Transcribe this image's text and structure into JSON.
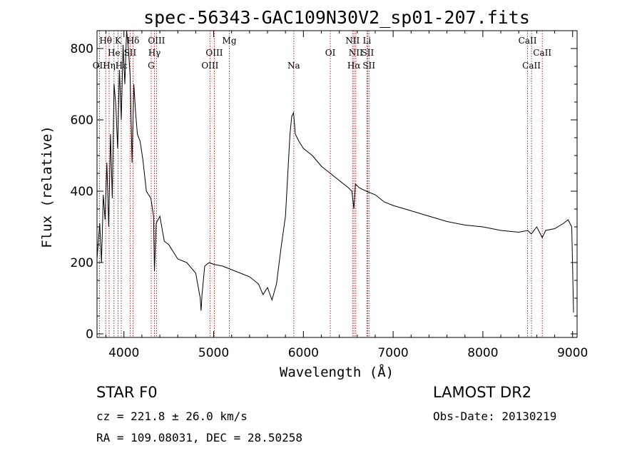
{
  "chart_data": {
    "type": "line",
    "title": "spec-56343-GAC109N30V2_sp01-207.fits",
    "xlabel": "Wavelength (Å)",
    "ylabel": "Flux (relative)",
    "xlim": [
      3700,
      9050
    ],
    "ylim": [
      -10,
      850
    ],
    "x_ticks": [
      4000,
      5000,
      6000,
      7000,
      8000,
      9000
    ],
    "y_ticks": [
      0,
      200,
      400,
      600,
      800
    ],
    "grid": false,
    "series": [
      {
        "color": "#000000",
        "x": [
          3700,
          3730,
          3750,
          3770,
          3790,
          3810,
          3830,
          3850,
          3870,
          3890,
          3910,
          3930,
          3950,
          3970,
          3990,
          4010,
          4030,
          4050,
          4070,
          4090,
          4110,
          4130,
          4150,
          4180,
          4210,
          4250,
          4300,
          4330,
          4340,
          4360,
          4400,
          4450,
          4500,
          4600,
          4700,
          4800,
          4850,
          4860,
          4870,
          4900,
          4950,
          5000,
          5100,
          5200,
          5300,
          5400,
          5500,
          5550,
          5600,
          5650,
          5700,
          5750,
          5800,
          5850,
          5870,
          5890,
          5910,
          5950,
          6000,
          6100,
          6200,
          6300,
          6400,
          6500,
          6540,
          6563,
          6580,
          6620,
          6700,
          6800,
          6900,
          7000,
          7200,
          7400,
          7600,
          7800,
          8000,
          8200,
          8400,
          8500,
          8540,
          8600,
          8662,
          8700,
          8800,
          8900,
          8950,
          8990,
          9000,
          9010
        ],
        "y": [
          210,
          310,
          200,
          390,
          320,
          480,
          300,
          560,
          380,
          700,
          640,
          520,
          740,
          600,
          810,
          700,
          850,
          800,
          720,
          480,
          700,
          620,
          560,
          540,
          490,
          400,
          380,
          330,
          175,
          310,
          330,
          260,
          250,
          210,
          200,
          170,
          100,
          65,
          110,
          190,
          200,
          195,
          190,
          180,
          170,
          160,
          140,
          110,
          130,
          95,
          140,
          240,
          330,
          560,
          610,
          620,
          560,
          540,
          520,
          500,
          470,
          450,
          430,
          410,
          400,
          350,
          420,
          410,
          400,
          390,
          370,
          360,
          345,
          330,
          315,
          305,
          300,
          290,
          285,
          290,
          280,
          300,
          270,
          290,
          295,
          310,
          320,
          300,
          190,
          60
        ]
      }
    ],
    "lines": [
      {
        "label": "Hθ",
        "wavelength": 3797,
        "row": 1
      },
      {
        "label": "OII",
        "wavelength": 3727,
        "row": 3
      },
      {
        "label": "Hη",
        "wavelength": 3835,
        "row": 3
      },
      {
        "label": "He",
        "wavelength": 3889,
        "row": 2
      },
      {
        "label": "K",
        "wavelength": 3934,
        "row": 1
      },
      {
        "label": "Hε",
        "wavelength": 3970,
        "row": 3
      },
      {
        "label": "SII",
        "wavelength": 4069,
        "row": 2
      },
      {
        "label": "Hδ",
        "wavelength": 4102,
        "row": 1
      },
      {
        "label": "G",
        "wavelength": 4304,
        "row": 3
      },
      {
        "label": "Hγ",
        "wavelength": 4340,
        "row": 2
      },
      {
        "label": "OIII",
        "wavelength": 4363,
        "row": 1
      },
      {
        "label": "OIII",
        "wavelength": 4959,
        "row": 3
      },
      {
        "label": "OIII",
        "wavelength": 5007,
        "row": 2
      },
      {
        "label": "Mg",
        "wavelength": 5175,
        "row": 1
      },
      {
        "label": "Na",
        "wavelength": 5893,
        "row": 3
      },
      {
        "label": "OI",
        "wavelength": 6300,
        "row": 2
      },
      {
        "label": "NII",
        "wavelength": 6548,
        "row": 1
      },
      {
        "label": "Hα",
        "wavelength": 6563,
        "row": 3
      },
      {
        "label": "NII",
        "wavelength": 6584,
        "row": 2
      },
      {
        "label": "Li",
        "wavelength": 6708,
        "row": 1
      },
      {
        "label": "SII",
        "wavelength": 6716,
        "row": 2
      },
      {
        "label": "SII",
        "wavelength": 6731,
        "row": 3
      },
      {
        "label": "CaII",
        "wavelength": 8498,
        "row": 1
      },
      {
        "label": "CaII",
        "wavelength": 8542,
        "row": 3
      },
      {
        "label": "CaII",
        "wavelength": 8662,
        "row": 2
      }
    ]
  },
  "info": {
    "class_line": "STAR    F0",
    "survey": "LAMOST DR2",
    "cz": "cz = 221.8 ± 26.0 km/s",
    "obs_date": "Obs-Date: 20130219",
    "coords": "RA = 109.08031, DEC =  28.50258"
  }
}
